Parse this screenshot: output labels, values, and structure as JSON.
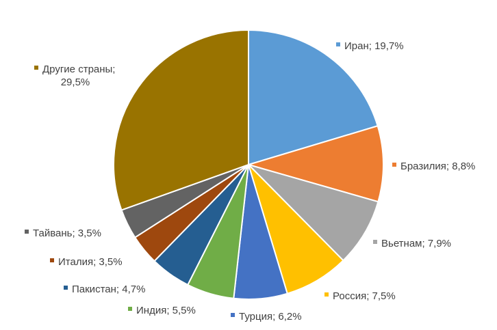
{
  "chart_data": {
    "type": "pie",
    "title": "",
    "series": [
      {
        "label": "Иран; 19,7%",
        "value": 19.7,
        "color": "#5B9BD5"
      },
      {
        "label": "Бразилия; 8,8%",
        "value": 8.8,
        "color": "#ED7D31"
      },
      {
        "label": "Вьетнам; 7,9%",
        "value": 7.9,
        "color": "#A5A5A5"
      },
      {
        "label": "Россия; 7,5%",
        "value": 7.5,
        "color": "#FFC000"
      },
      {
        "label": "Турция; 6,2%",
        "value": 6.2,
        "color": "#4472C4"
      },
      {
        "label": "Индия; 5,5%",
        "value": 5.5,
        "color": "#70AD47"
      },
      {
        "label": "Пакистан; 4,7%",
        "value": 4.7,
        "color": "#255E91"
      },
      {
        "label": "Италия; 3,5%",
        "value": 3.5,
        "color": "#9E480E"
      },
      {
        "label": "Тайвань; 3,5%",
        "value": 3.5,
        "color": "#636363"
      },
      {
        "label_lines": [
          "Другие страны;",
          "29,5%"
        ],
        "value": 29.5,
        "color": "#997300"
      }
    ]
  }
}
